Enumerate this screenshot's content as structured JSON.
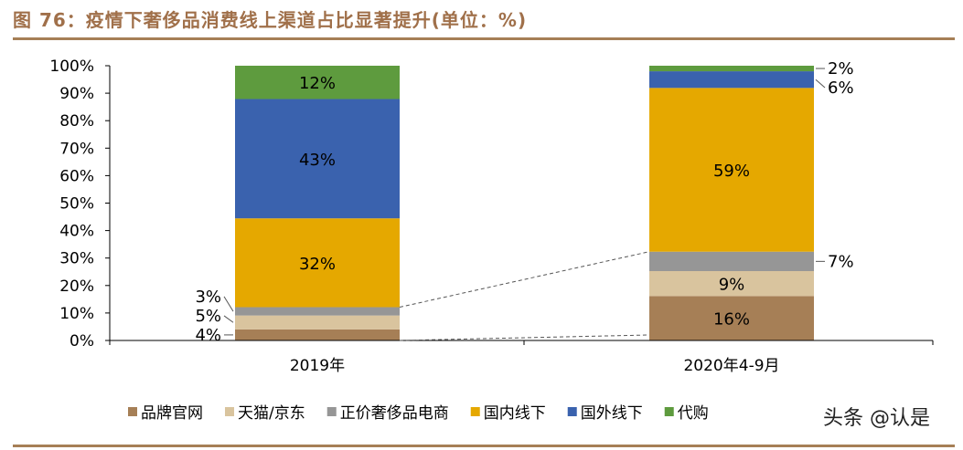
{
  "title": "图 76：疫情下奢侈品消费线上渠道占比显著提升(单位：%)",
  "watermark": "头条 @认是",
  "chart_data": {
    "type": "bar",
    "stacked": true,
    "categories": [
      "2019年",
      "2020年4-9月"
    ],
    "series": [
      {
        "name": "品牌官网",
        "color": "#A67F56",
        "values": [
          4,
          16
        ]
      },
      {
        "name": "天猫/京东",
        "color": "#D9C49E",
        "values": [
          5,
          9
        ]
      },
      {
        "name": "正价奢侈品电商",
        "color": "#969696",
        "values": [
          3,
          7
        ]
      },
      {
        "name": "国内线下",
        "color": "#E5A800",
        "values": [
          32,
          59
        ]
      },
      {
        "name": "国外线下",
        "color": "#3A62AE",
        "values": [
          43,
          6
        ]
      },
      {
        "name": "代购",
        "color": "#5E9B3E",
        "values": [
          12,
          2
        ]
      }
    ],
    "ylim": [
      0,
      100
    ],
    "yticks": [
      "0%",
      "10%",
      "20%",
      "30%",
      "40%",
      "50%",
      "60%",
      "70%",
      "80%",
      "90%",
      "100%"
    ],
    "legend": "bottom",
    "grid": false
  }
}
